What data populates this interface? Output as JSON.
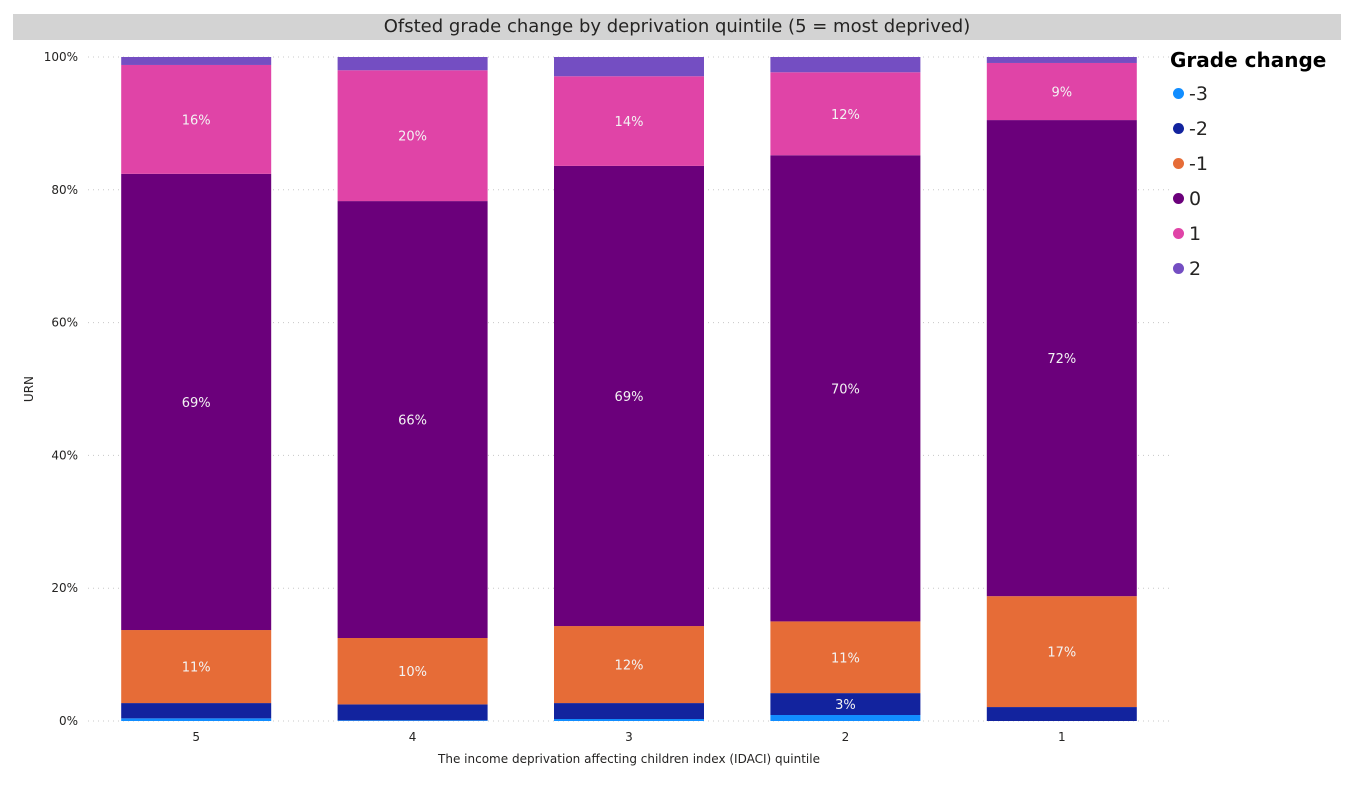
{
  "chart_data": {
    "type": "bar",
    "stacked": "100%",
    "title": "Ofsted grade change by deprivation quintile (5 = most deprived)",
    "xlabel": "The income deprivation affecting children index (IDACI) quintile",
    "ylabel": "URN",
    "ylim": [
      0,
      100
    ],
    "yticks": [
      "0%",
      "20%",
      "40%",
      "60%",
      "80%",
      "100%"
    ],
    "grid": true,
    "legend_title": "Grade change",
    "legend_position": "right",
    "categories": [
      "5",
      "4",
      "3",
      "2",
      "1"
    ],
    "series": [
      {
        "name": "-3",
        "color": "#118dff",
        "values": [
          0.4,
          0.1,
          0.3,
          0.9,
          0.0
        ],
        "labels": [
          null,
          null,
          null,
          null,
          null
        ]
      },
      {
        "name": "-2",
        "color": "#12239e",
        "values": [
          2.3,
          2.4,
          2.4,
          3.3,
          2.1
        ],
        "labels": [
          null,
          null,
          null,
          "3%",
          null
        ]
      },
      {
        "name": "-1",
        "color": "#e66c37",
        "values": [
          11.0,
          10.0,
          11.6,
          10.8,
          16.7
        ],
        "labels": [
          "11%",
          "10%",
          "12%",
          "11%",
          "17%"
        ]
      },
      {
        "name": "0",
        "color": "#6b007b",
        "values": [
          68.7,
          65.8,
          69.3,
          70.2,
          71.7
        ],
        "labels": [
          "69%",
          "66%",
          "69%",
          "70%",
          "72%"
        ]
      },
      {
        "name": "1",
        "color": "#e044a7",
        "values": [
          16.4,
          19.7,
          13.5,
          12.5,
          8.6
        ],
        "labels": [
          "16%",
          "20%",
          "14%",
          "12%",
          "9%"
        ]
      },
      {
        "name": "2",
        "color": "#744ec2",
        "values": [
          1.2,
          2.0,
          2.9,
          2.3,
          0.9
        ],
        "labels": [
          null,
          null,
          null,
          null,
          null
        ]
      }
    ]
  }
}
